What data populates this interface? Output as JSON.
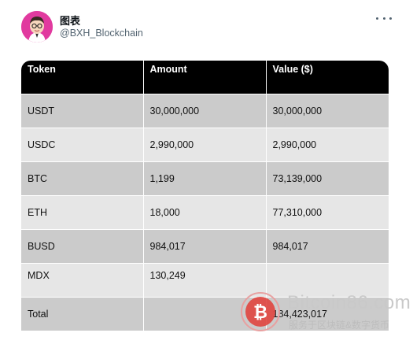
{
  "tweet": {
    "display_name": "图表",
    "handle": "@BXH_Blockchain",
    "more_icon": "more-horizontal-icon"
  },
  "table": {
    "headers": [
      "Token",
      "Amount",
      "Value ($)"
    ],
    "rows": [
      [
        "USDT",
        "30,000,000",
        "30,000,000"
      ],
      [
        "USDC",
        "2,990,000",
        "2,990,000"
      ],
      [
        "BTC",
        "1,199",
        "73,139,000"
      ],
      [
        "ETH",
        "18,000",
        "77,310,000"
      ],
      [
        "BUSD",
        "984,017",
        "984,017"
      ],
      [
        "MDX",
        "130,249",
        ""
      ],
      [
        "Total",
        "",
        "184,423,017"
      ]
    ],
    "colors": {
      "header_bg": "#000000",
      "row_dark": "#cbcbcb",
      "row_light": "#e6e6e6"
    }
  },
  "watermark": {
    "title": "Bitcoin86.com",
    "subtitle": "服务于区块链&数字货币",
    "logo": "bitcoin-logo-icon"
  }
}
